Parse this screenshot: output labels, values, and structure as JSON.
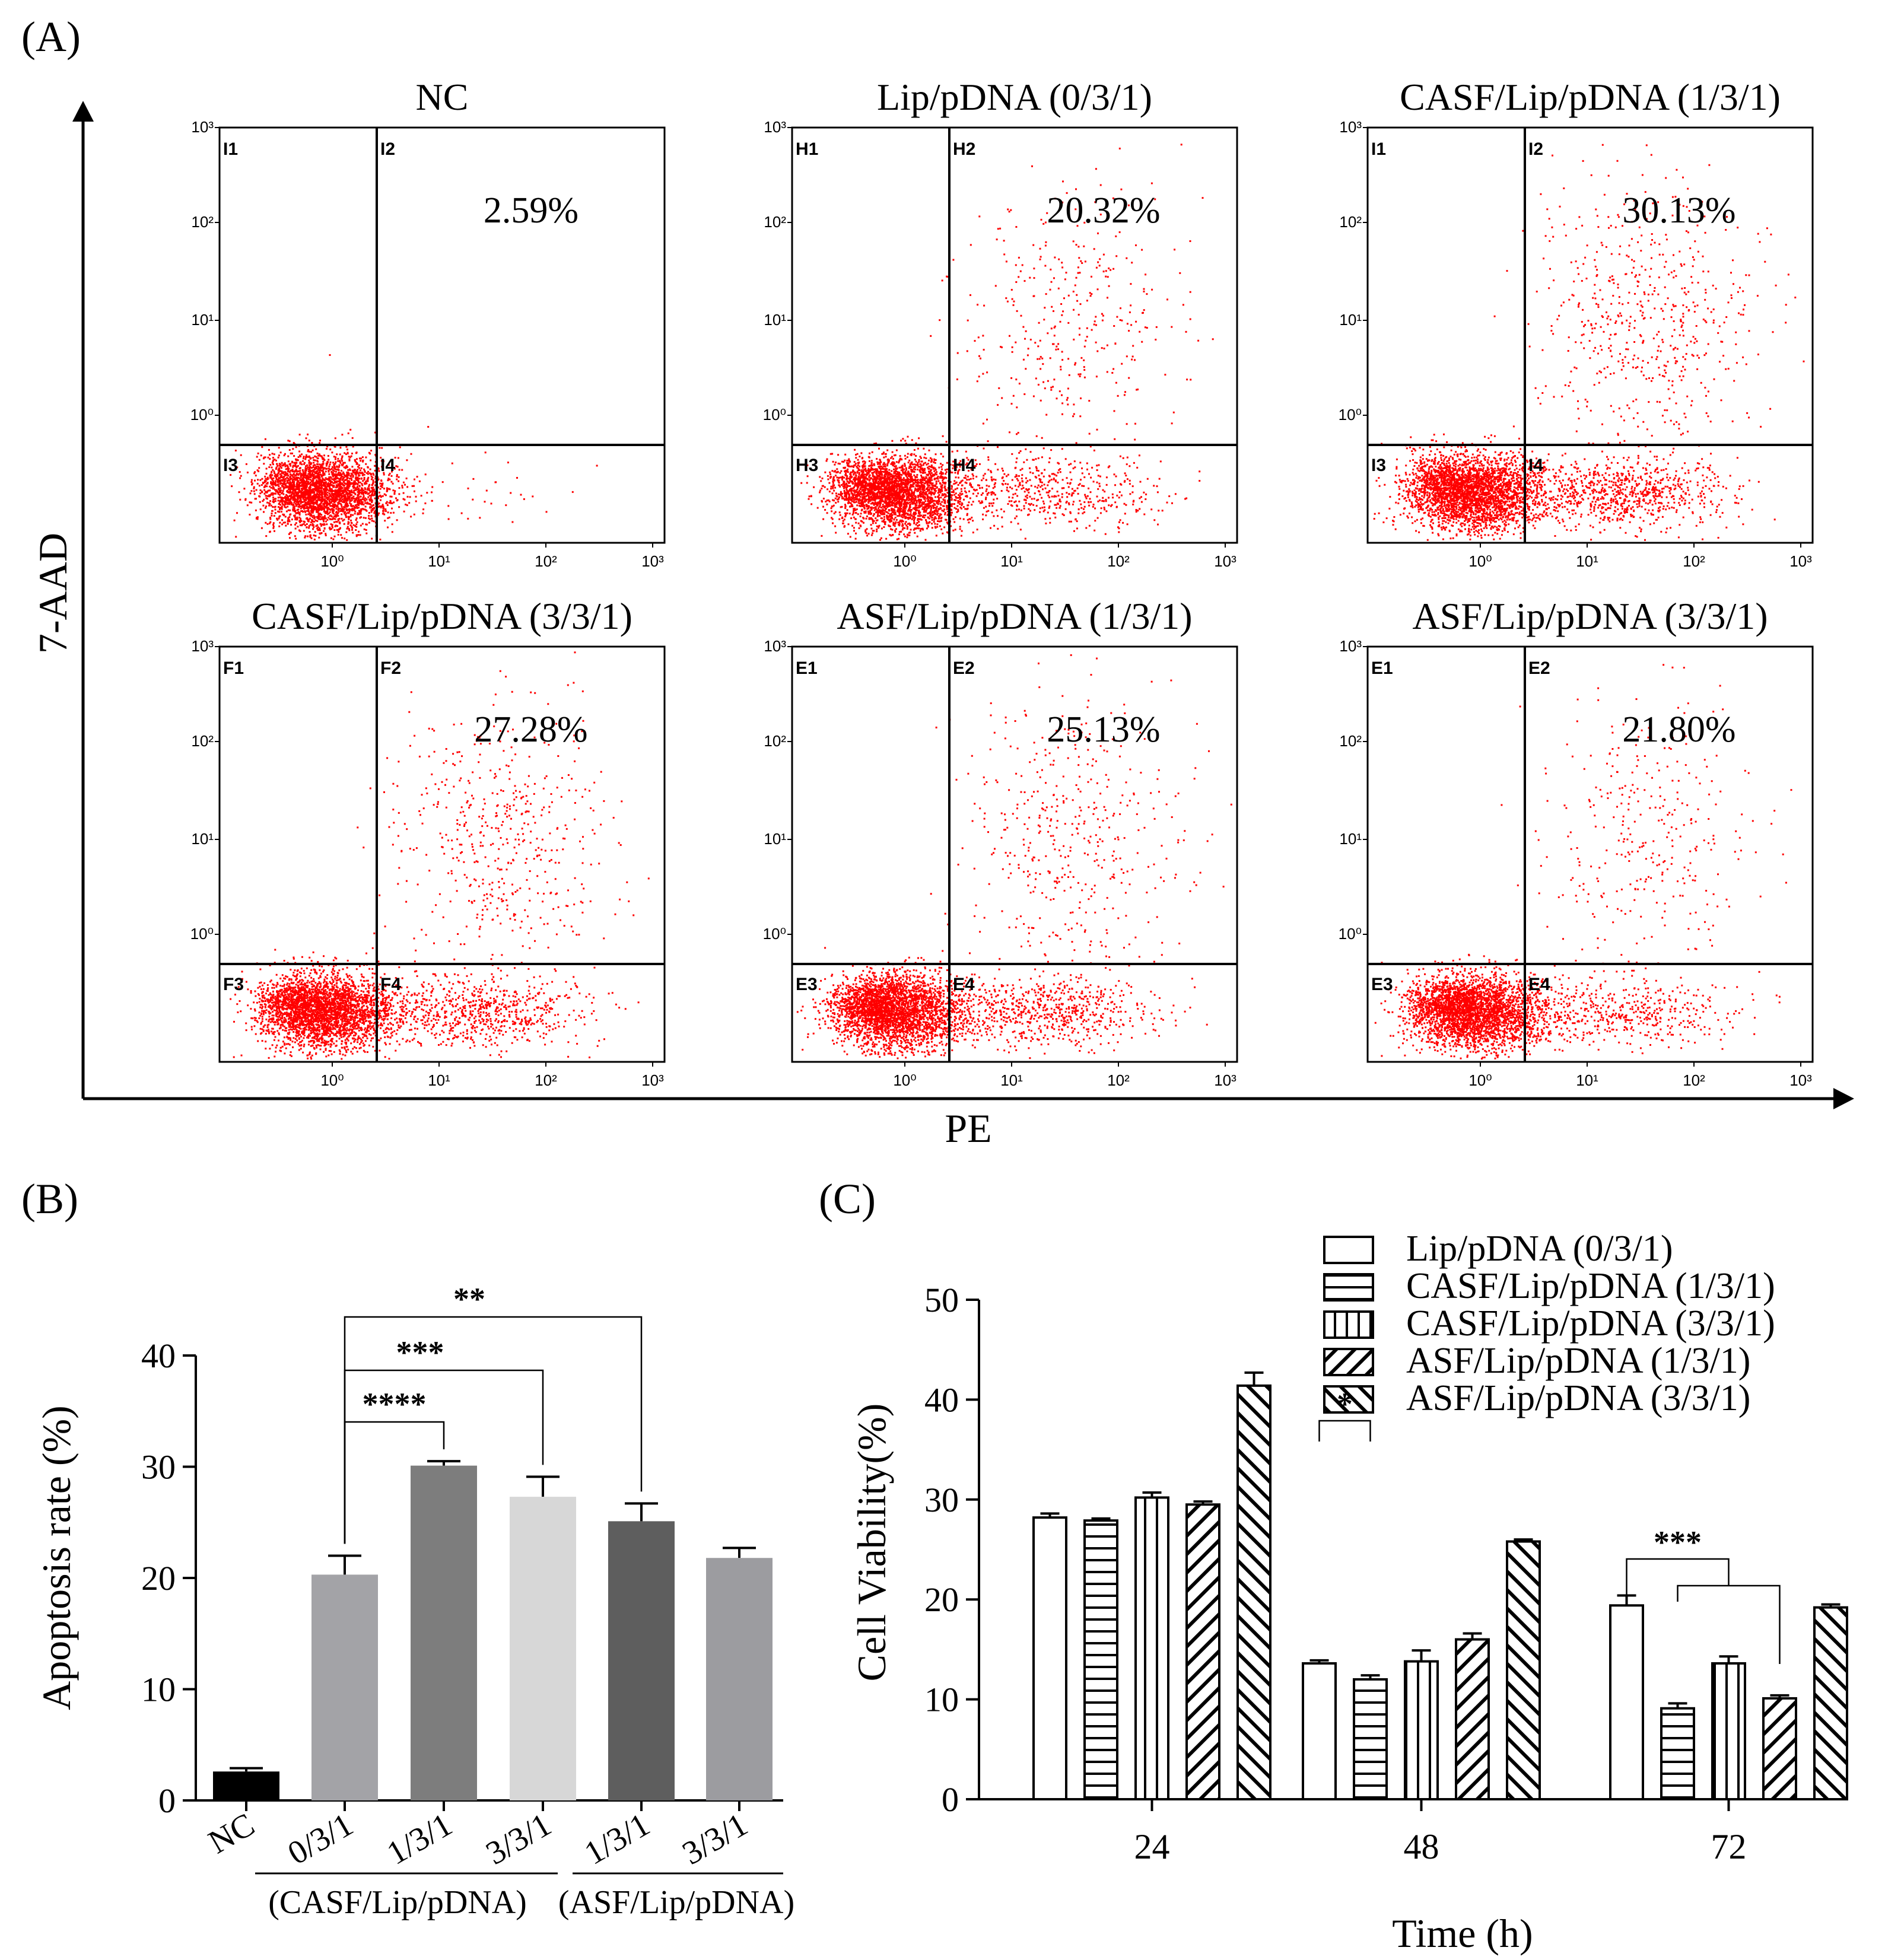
{
  "panel_a": {
    "label": "(A)",
    "y_axis_label": "7-AAD",
    "x_axis_label": "PE",
    "tick_labels": [
      "10⁰",
      "10¹",
      "10²",
      "10³"
    ],
    "plots": [
      {
        "title": "NC",
        "percent": "2.59%",
        "q": [
          "I1",
          "I2",
          "I3",
          "I4"
        ]
      },
      {
        "title": "Lip/pDNA (0/3/1)",
        "percent": "20.32%",
        "q": [
          "H1",
          "H2",
          "H3",
          "H4"
        ]
      },
      {
        "title": "CASF/Lip/pDNA (1/3/1)",
        "percent": "30.13%",
        "q": [
          "I1",
          "I2",
          "I3",
          "I4"
        ]
      },
      {
        "title": "CASF/Lip/pDNA (3/3/1)",
        "percent": "27.28%",
        "q": [
          "F1",
          "F2",
          "F3",
          "F4"
        ]
      },
      {
        "title": "ASF/Lip/pDNA (1/3/1)",
        "percent": "25.13%",
        "q": [
          "E1",
          "E2",
          "E3",
          "E4"
        ]
      },
      {
        "title": "ASF/Lip/pDNA (3/3/1)",
        "percent": "21.80%",
        "q": [
          "E1",
          "E2",
          "E3",
          "E4"
        ]
      }
    ]
  },
  "panel_b": {
    "label": "(B)",
    "group_labels": [
      "(CASF/Lip/pDNA)",
      "(ASF/Lip/pDNA)"
    ]
  },
  "panel_c": {
    "label": "(C)"
  },
  "chart_data": [
    {
      "type": "bar",
      "ylabel": "Apoptosis rate (%)",
      "ylim": [
        0,
        40
      ],
      "yticks": [
        0,
        10,
        20,
        30,
        40
      ],
      "categories": [
        "NC",
        "0/3/1",
        "1/3/1",
        "3/3/1",
        "1/3/1",
        "3/3/1"
      ],
      "values": [
        2.6,
        20.3,
        30.1,
        27.3,
        25.1,
        21.8
      ],
      "errors": [
        0.3,
        1.7,
        0.4,
        1.8,
        1.6,
        0.9
      ],
      "colors": [
        "#000000",
        "#a3a3a7",
        "#7d7d7d",
        "#d7d7d7",
        "#5e5e5e",
        "#9c9ca0"
      ],
      "significance": [
        {
          "from": 1,
          "to": 2,
          "label": "****"
        },
        {
          "from": 1,
          "to": 3,
          "label": "***"
        },
        {
          "from": 1,
          "to": 4,
          "label": "**"
        }
      ]
    },
    {
      "type": "bar",
      "xlabel": "Time (h)",
      "ylabel": "Cell Viability(%)",
      "ylim": [
        0,
        50
      ],
      "yticks": [
        0,
        10,
        20,
        30,
        40,
        50
      ],
      "categories": [
        "24",
        "48",
        "72"
      ],
      "series": [
        {
          "name": "Lip/pDNA (0/3/1)",
          "pattern": "open",
          "values": [
            28.2,
            13.6,
            19.4
          ],
          "errors": [
            0.4,
            0.3,
            1.0
          ]
        },
        {
          "name": "CASF/Lip/pDNA (1/3/1)",
          "pattern": "horizontal",
          "values": [
            27.9,
            12.0,
            9.1
          ],
          "errors": [
            0.2,
            0.4,
            0.5
          ]
        },
        {
          "name": "CASF/Lip/pDNA (3/3/1)",
          "pattern": "vertical",
          "values": [
            30.2,
            13.8,
            13.6
          ],
          "errors": [
            0.5,
            1.1,
            0.7
          ]
        },
        {
          "name": "ASF/Lip/pDNA (1/3/1)",
          "pattern": "diag-up",
          "values": [
            29.5,
            16.0,
            10.1
          ],
          "errors": [
            0.3,
            0.6,
            0.3
          ]
        },
        {
          "name": "ASF/Lip/pDNA (3/3/1)",
          "pattern": "diag-down",
          "values": [
            41.4,
            25.8,
            19.2
          ],
          "errors": [
            1.3,
            0.2,
            0.3
          ]
        }
      ],
      "significance": [
        {
          "label": "*",
          "time": "48"
        },
        {
          "label": "***",
          "time": "72"
        }
      ]
    }
  ]
}
